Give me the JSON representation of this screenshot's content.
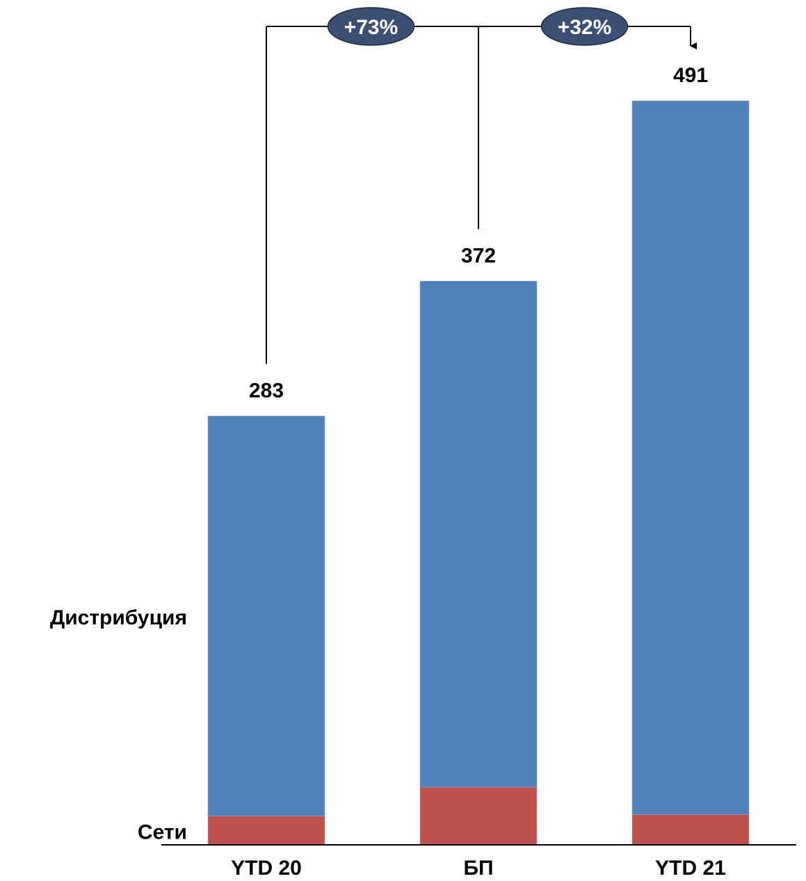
{
  "chart_data": {
    "type": "bar",
    "stacked": true,
    "categories": [
      "YTD 20",
      "БП",
      "YTD 21"
    ],
    "totals": [
      283,
      372,
      491
    ],
    "series": [
      {
        "name": "Сети",
        "values": [
          19,
          38,
          20
        ],
        "color": "#C0504D"
      },
      {
        "name": "Дистрибуция",
        "values": [
          264,
          334,
          471
        ],
        "color": "#4F81BD"
      }
    ],
    "growth_annotations": [
      {
        "from": "YTD 20",
        "to": "YTD 21",
        "label": "+73%"
      },
      {
        "from": "БП",
        "to": "YTD 21",
        "label": "+32%"
      }
    ],
    "colors": {
      "pill_fill": "#3B4E73",
      "axis": "#000000",
      "connector": "#000000"
    }
  }
}
